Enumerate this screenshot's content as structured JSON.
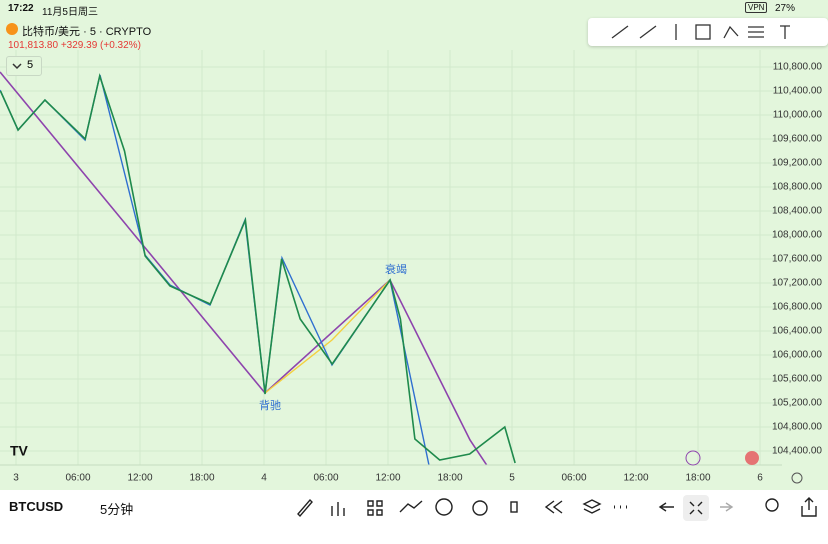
{
  "status_bar": {
    "time": "17:22",
    "date": "11月5日周三",
    "vpn": "VPN",
    "battery": "27%"
  },
  "header": {
    "title": "比特币/美元 · 5 · CRYPTO",
    "price": "101,813.80",
    "change": "+329.39 (+0.32%)",
    "interval": "5"
  },
  "chart_data": {
    "type": "line",
    "color": "#1f8a4c",
    "background": "#e3f6dc",
    "x": [
      -1.5,
      0.2,
      2.8,
      6.7,
      8.1,
      10.5,
      12.5,
      14.9,
      18.8,
      22.2,
      24.1,
      25.7,
      27.5,
      30.6,
      36.2,
      37.2,
      38.6,
      41.0,
      43.9,
      47.3,
      48.3
    ],
    "values": [
      110400,
      109750,
      110250,
      109600,
      110650,
      109400,
      107650,
      107150,
      106850,
      108250,
      105350,
      107600,
      106600,
      105850,
      107250,
      106600,
      104600,
      104250,
      104350,
      104800,
      104200
    ],
    "xlim": [
      -1.5,
      74
    ],
    "xticks": [
      {
        "value": 0,
        "label": "3"
      },
      {
        "value": 6,
        "label": "06:00"
      },
      {
        "value": 12,
        "label": "12:00"
      },
      {
        "value": 18,
        "label": "18:00"
      },
      {
        "value": 24,
        "label": "4"
      },
      {
        "value": 30,
        "label": "06:00"
      },
      {
        "value": 36,
        "label": "12:00"
      },
      {
        "value": 42,
        "label": "18:00"
      },
      {
        "value": 48,
        "label": "5"
      },
      {
        "value": 54,
        "label": "06:00"
      },
      {
        "value": 60,
        "label": "12:00"
      },
      {
        "value": 66,
        "label": "18:00"
      },
      {
        "value": 72,
        "label": "6"
      }
    ],
    "ylim": [
      104200,
      111000
    ],
    "yticks": [
      {
        "value": 104400,
        "label": "104,400.00"
      },
      {
        "value": 104800,
        "label": "104,800.00"
      },
      {
        "value": 105200,
        "label": "105,200.00"
      },
      {
        "value": 105600,
        "label": "105,600.00"
      },
      {
        "value": 106000,
        "label": "106,000.00"
      },
      {
        "value": 106400,
        "label": "106,400.00"
      },
      {
        "value": 106800,
        "label": "106,800.00"
      },
      {
        "value": 107200,
        "label": "107,200.00"
      },
      {
        "value": 107600,
        "label": "107,600.00"
      },
      {
        "value": 108000,
        "label": "108,000.00"
      },
      {
        "value": 108400,
        "label": "108,400.00"
      },
      {
        "value": 108800,
        "label": "108,800.00"
      },
      {
        "value": 109200,
        "label": "109,200.00"
      },
      {
        "value": 109600,
        "label": "109,600.00"
      },
      {
        "value": 110000,
        "label": "110,000.00"
      },
      {
        "value": 110400,
        "label": "110,400.00"
      },
      {
        "value": 110800,
        "label": "110,800.00"
      }
    ],
    "annotations": [
      "衰竭",
      "背驰"
    ]
  },
  "footer": {
    "symbol": "BTCUSD",
    "interval": "5分钟"
  }
}
